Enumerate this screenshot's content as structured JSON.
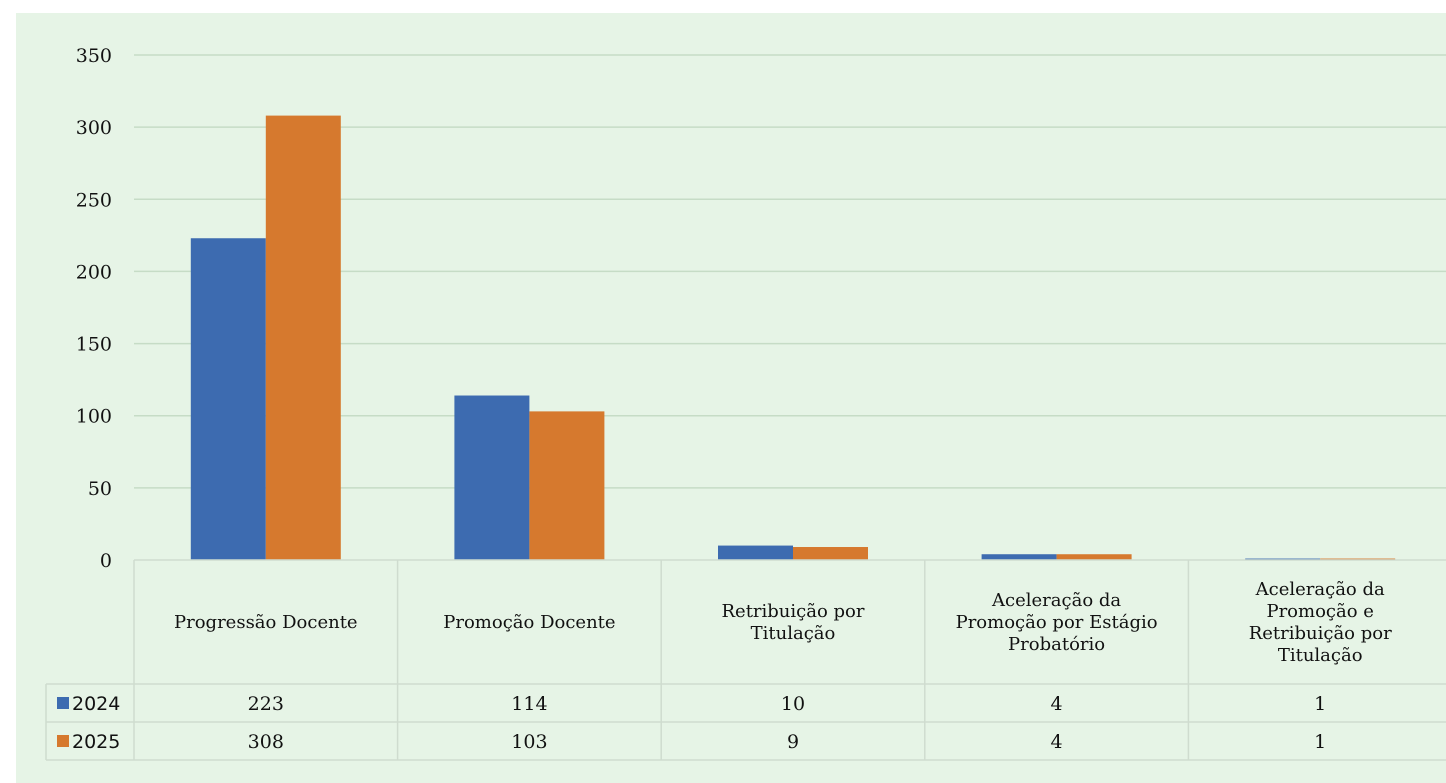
{
  "colors": {
    "background": "#e6f4e6",
    "border": "#ffffff",
    "gridline": "#c6dcc6",
    "table_line": "#cfdccf"
  },
  "chart_data": {
    "type": "bar",
    "title": "",
    "xlabel": "",
    "ylabel": "",
    "ylim": [
      0,
      350
    ],
    "yticks": [
      0,
      50,
      100,
      150,
      200,
      250,
      300,
      350
    ],
    "grid": true,
    "legend": "data-table",
    "categories": [
      [
        "Progressão Docente"
      ],
      [
        "Promoção Docente"
      ],
      [
        "Retribuição por",
        "Titulação"
      ],
      [
        "Aceleração da",
        "Promoção por Estágio",
        "Probatório"
      ],
      [
        "Aceleração da",
        "Promoção e",
        "Retribuição por",
        "Titulação"
      ]
    ],
    "series": [
      {
        "name": "2024",
        "color": "#3d6bb0",
        "values": [
          223,
          114,
          10,
          4,
          1
        ]
      },
      {
        "name": "2025",
        "color": "#d6792e",
        "values": [
          308,
          103,
          9,
          4,
          1
        ]
      }
    ]
  }
}
